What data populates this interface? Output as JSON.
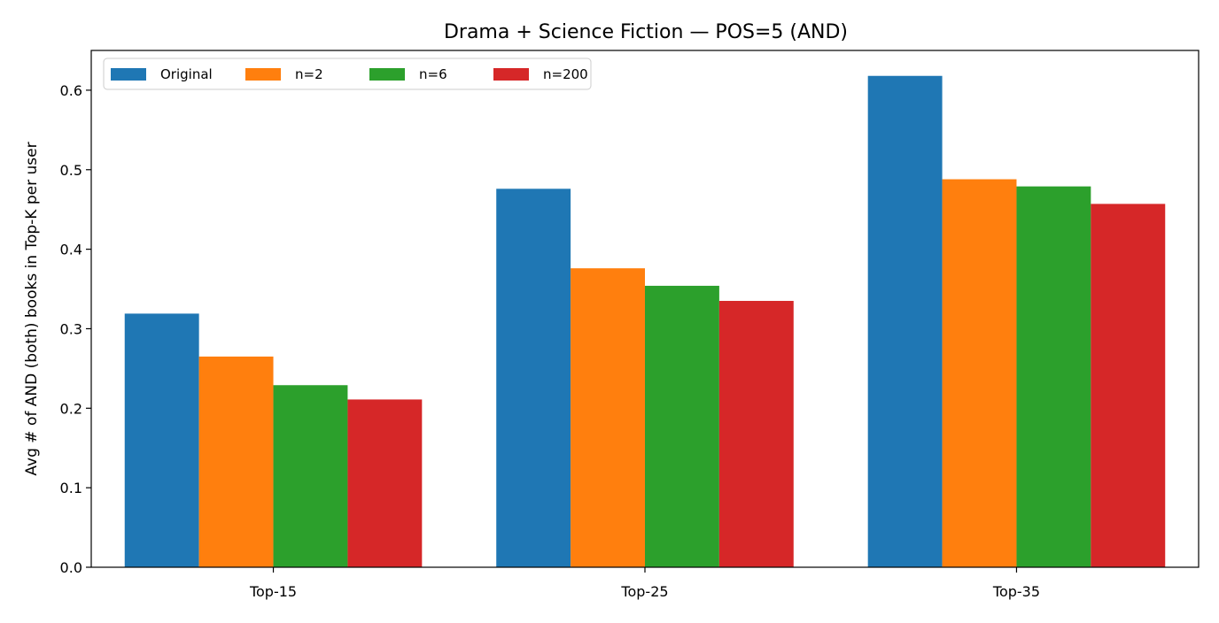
{
  "chart_data": {
    "type": "bar",
    "title": "Drama + Science Fiction — POS=5 (AND)",
    "xlabel": "",
    "ylabel": "Avg # of AND (both) books in Top-K per user",
    "categories": [
      "Top-15",
      "Top-25",
      "Top-35"
    ],
    "series": [
      {
        "name": "Original",
        "color": "#1f77b4",
        "values": [
          0.319,
          0.476,
          0.618
        ]
      },
      {
        "name": "n=2",
        "color": "#ff7f0e",
        "values": [
          0.265,
          0.376,
          0.488
        ]
      },
      {
        "name": "n=6",
        "color": "#2ca02c",
        "values": [
          0.229,
          0.354,
          0.479
        ]
      },
      {
        "name": "n=200",
        "color": "#d62728",
        "values": [
          0.211,
          0.335,
          0.457
        ]
      }
    ],
    "ylim": [
      0,
      0.65
    ],
    "yticks": [
      "0.0",
      "0.1",
      "0.2",
      "0.3",
      "0.4",
      "0.5",
      "0.6"
    ],
    "grid": false,
    "legend_position": "top-left"
  }
}
